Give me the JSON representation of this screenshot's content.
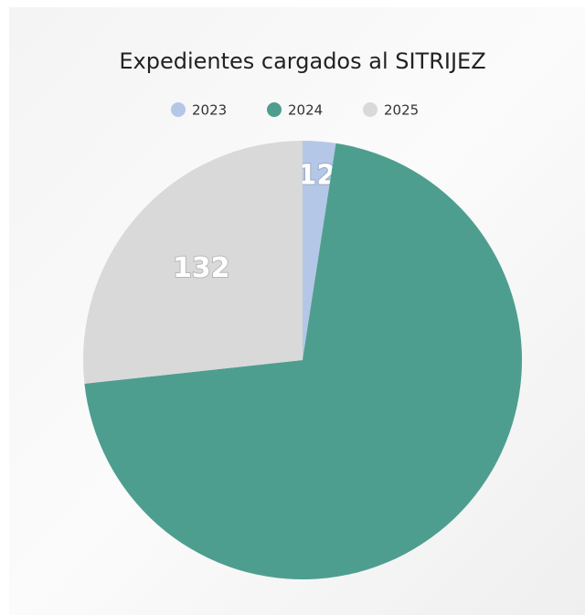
{
  "chart_data": {
    "type": "pie",
    "title": "Expedientes cargados al SITRIJEZ",
    "categories": [
      "2023",
      "2024",
      "2025"
    ],
    "values": [
      12,
      350,
      132
    ],
    "value_labels": [
      "12",
      null,
      "132"
    ],
    "colors": [
      "#b4c7e7",
      "#4e9e8f",
      "#d9d9d9"
    ],
    "legend": "top"
  }
}
